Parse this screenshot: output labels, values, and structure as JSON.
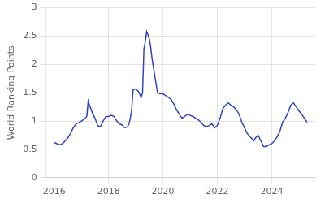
{
  "chart_data": {
    "type": "line",
    "ylabel": "World Ranking Points",
    "color": "#3344bb",
    "x": [
      2016.0,
      2016.05,
      2016.1,
      2016.15,
      2016.2,
      2016.25,
      2016.3,
      2016.35,
      2016.4,
      2016.5,
      2016.6,
      2016.7,
      2016.8,
      2016.9,
      2017.0,
      2017.1,
      2017.2,
      2017.25,
      2017.3,
      2017.4,
      2017.5,
      2017.6,
      2017.7,
      2017.8,
      2017.9,
      2018.0,
      2018.1,
      2018.2,
      2018.3,
      2018.4,
      2018.5,
      2018.55,
      2018.6,
      2018.7,
      2018.75,
      2018.8,
      2018.85,
      2018.9,
      2019.0,
      2019.1,
      2019.2,
      2019.25,
      2019.3,
      2019.35,
      2019.4,
      2019.45,
      2019.5,
      2019.55,
      2019.6,
      2019.7,
      2019.8,
      2019.9,
      2020.0,
      2020.1,
      2020.2,
      2020.3,
      2020.4,
      2020.5,
      2020.6,
      2020.7,
      2020.8,
      2020.9,
      2021.0,
      2021.1,
      2021.2,
      2021.3,
      2021.4,
      2021.5,
      2021.6,
      2021.7,
      2021.8,
      2021.9,
      2022.0,
      2022.1,
      2022.2,
      2022.3,
      2022.4,
      2022.5,
      2022.6,
      2022.7,
      2022.8,
      2022.9,
      2023.0,
      2023.1,
      2023.2,
      2023.3,
      2023.35,
      2023.4,
      2023.5,
      2023.6,
      2023.7,
      2023.8,
      2023.9,
      2024.0,
      2024.1,
      2024.2,
      2024.3,
      2024.35,
      2024.4,
      2024.5,
      2024.6,
      2024.7,
      2024.8,
      2024.9,
      2025.0,
      2025.1,
      2025.2,
      2025.3
    ],
    "values": [
      0.62,
      0.61,
      0.6,
      0.59,
      0.58,
      0.59,
      0.6,
      0.62,
      0.65,
      0.7,
      0.78,
      0.88,
      0.95,
      0.97,
      1.0,
      1.03,
      1.08,
      1.35,
      1.28,
      1.15,
      1.05,
      0.92,
      0.9,
      1.0,
      1.08,
      1.08,
      1.1,
      1.08,
      1.0,
      0.95,
      0.93,
      0.9,
      0.88,
      0.9,
      0.95,
      1.05,
      1.2,
      1.55,
      1.57,
      1.52,
      1.42,
      1.5,
      2.28,
      2.4,
      2.58,
      2.52,
      2.45,
      2.3,
      2.1,
      1.8,
      1.5,
      1.48,
      1.48,
      1.45,
      1.42,
      1.38,
      1.3,
      1.2,
      1.12,
      1.05,
      1.08,
      1.12,
      1.1,
      1.08,
      1.05,
      1.02,
      0.98,
      0.92,
      0.9,
      0.92,
      0.95,
      0.88,
      0.92,
      1.05,
      1.22,
      1.28,
      1.32,
      1.28,
      1.25,
      1.2,
      1.12,
      0.98,
      0.88,
      0.78,
      0.72,
      0.68,
      0.65,
      0.7,
      0.75,
      0.65,
      0.55,
      0.55,
      0.58,
      0.6,
      0.65,
      0.72,
      0.82,
      0.9,
      0.98,
      1.05,
      1.15,
      1.28,
      1.32,
      1.25,
      1.18,
      1.12,
      1.05,
      0.98
    ],
    "xlim": [
      2015.7,
      2025.6
    ],
    "xticks": [
      2016,
      2018,
      2020,
      2022,
      2024
    ],
    "ylim": [
      0,
      3
    ],
    "yticks": [
      0,
      0.5,
      1.0,
      1.5,
      2.0,
      2.5,
      3.0
    ],
    "grid": true
  }
}
